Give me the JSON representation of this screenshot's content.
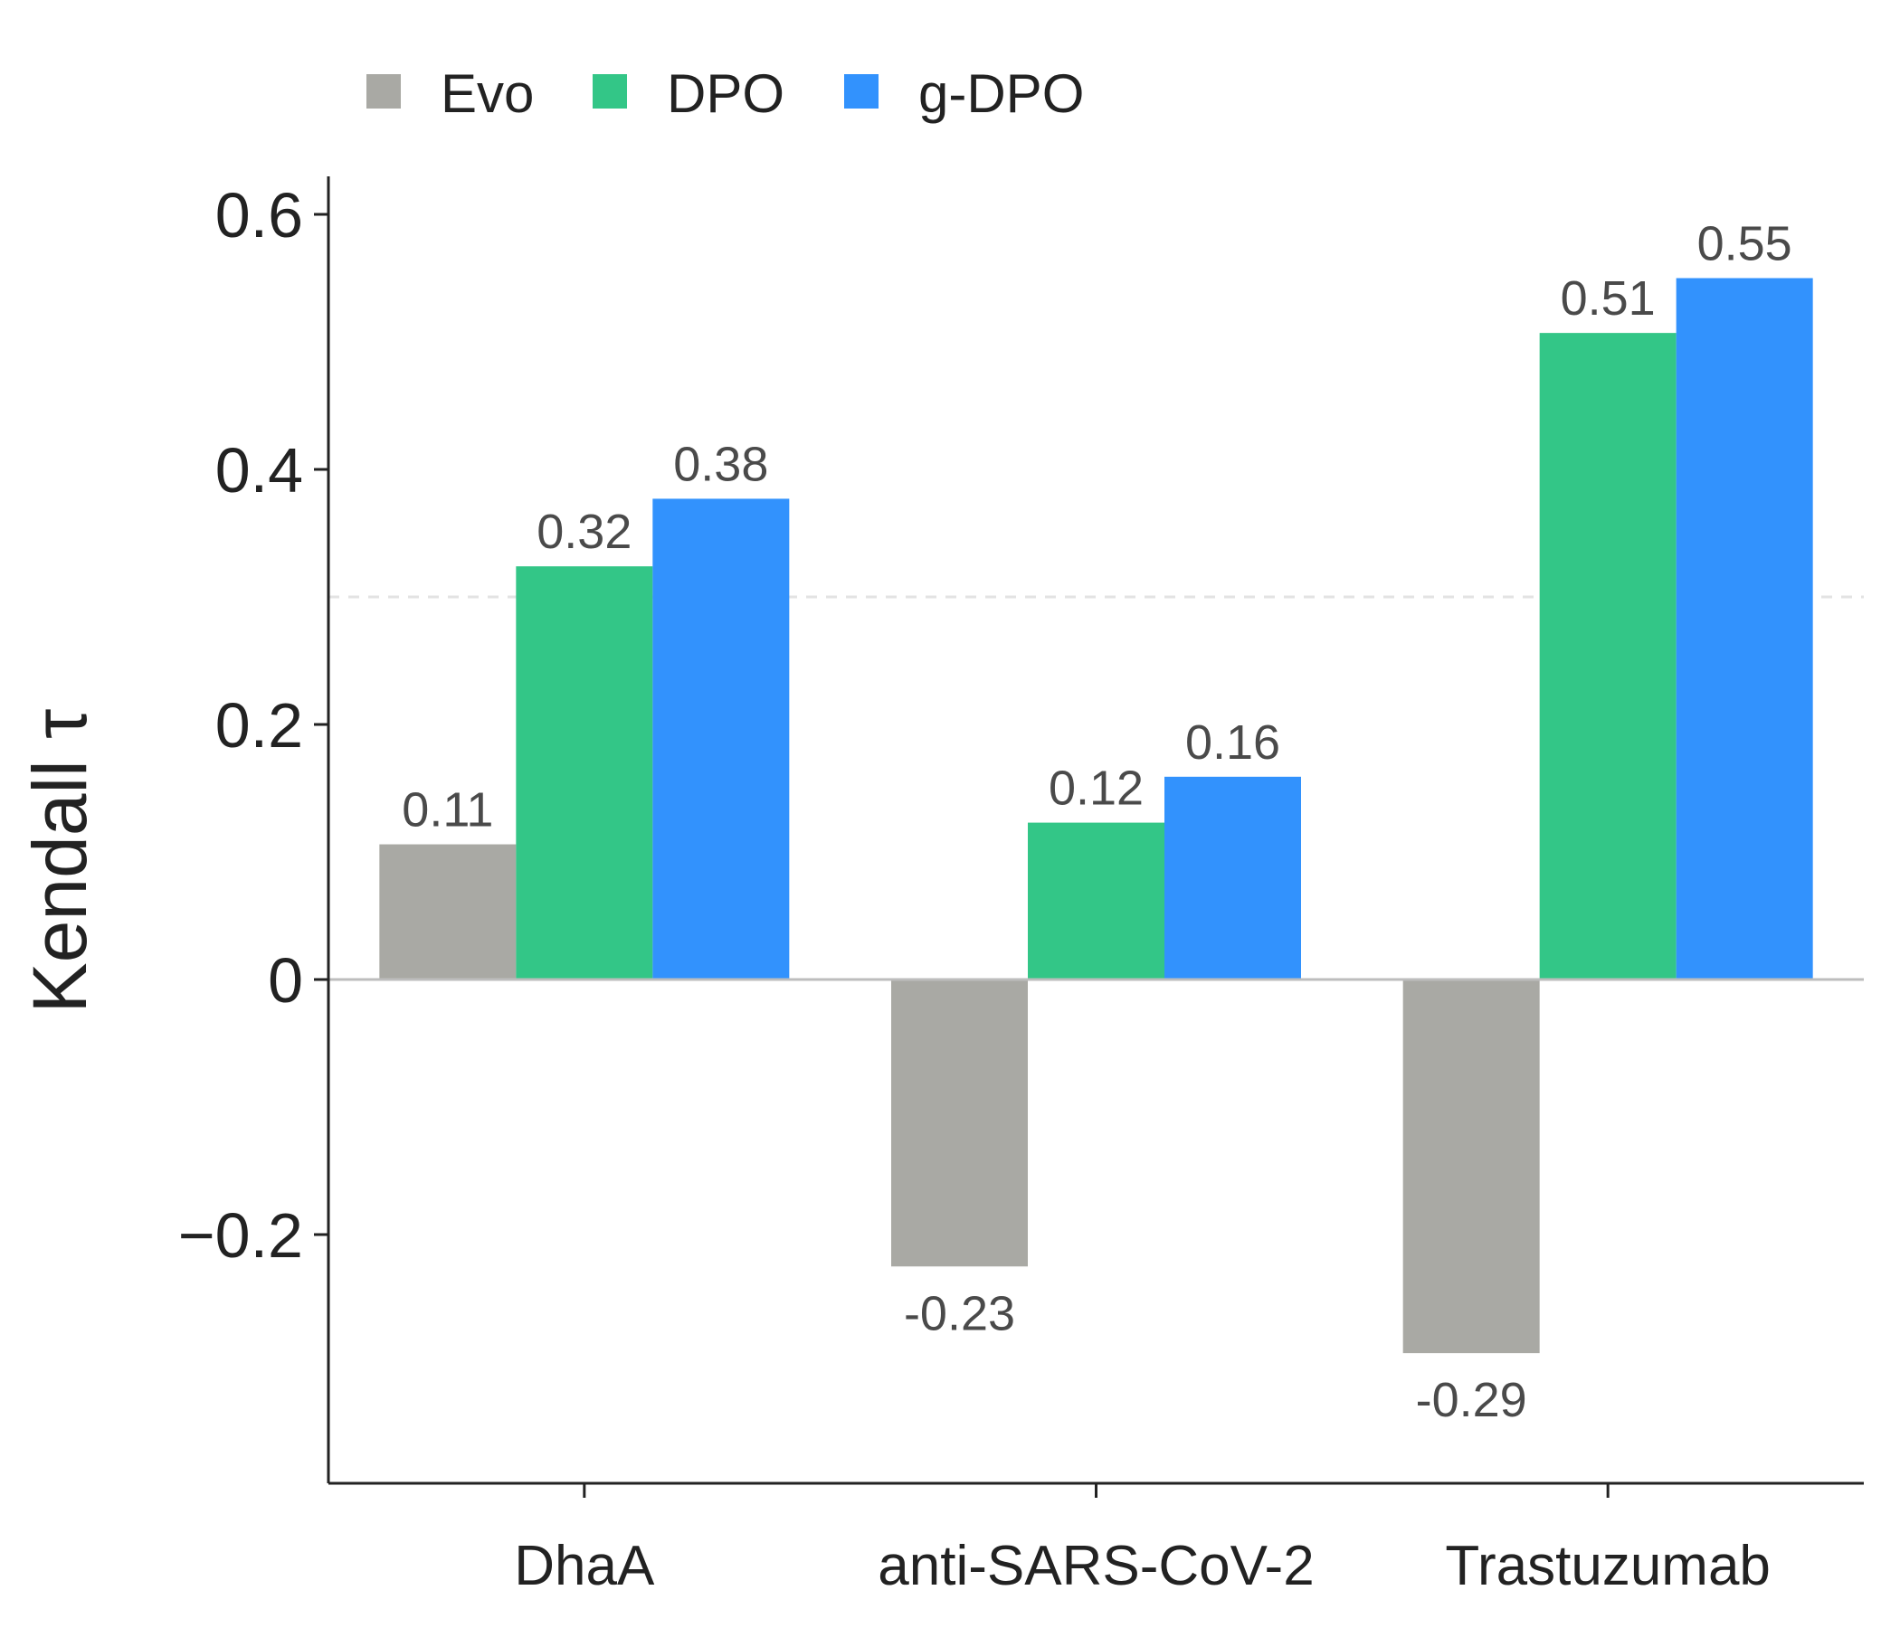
{
  "chart_data": {
    "type": "bar",
    "categories": [
      "DhaA",
      "anti-SARS-CoV-2",
      "Trastuzumab"
    ],
    "series": [
      {
        "name": "Evo",
        "color": "#a9a9a4",
        "values": [
          0.106,
          -0.225,
          -0.293
        ],
        "labels": [
          "0.11",
          "-0.23",
          "-0.29"
        ]
      },
      {
        "name": "DPO",
        "color": "#33c687",
        "values": [
          0.324,
          0.123,
          0.507
        ],
        "labels": [
          "0.32",
          "0.12",
          "0.51"
        ]
      },
      {
        "name": "g-DPO",
        "color": "#3292fd",
        "values": [
          0.377,
          0.159,
          0.55
        ],
        "labels": [
          "0.38",
          "0.16",
          "0.55"
        ]
      }
    ],
    "ylabel": "Kendall τ",
    "xlabel": "",
    "ylim": [
      -0.39,
      0.63
    ],
    "yticks": [
      -0.2,
      0,
      0.2,
      0.4,
      0.6
    ],
    "ytick_labels": [
      "−0.2",
      "0",
      "0.2",
      "0.4",
      "0.6"
    ],
    "reference_line": 0.3,
    "legend_position": "top-left",
    "grid": false
  }
}
